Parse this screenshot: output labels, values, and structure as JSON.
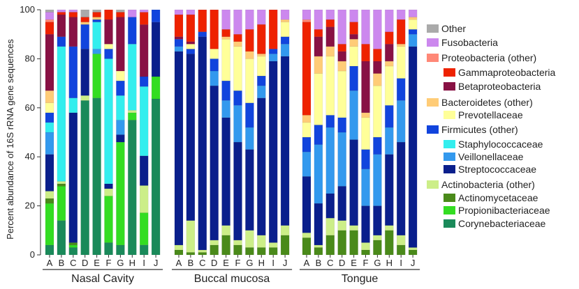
{
  "chart_data": {
    "type": "bar",
    "stacked": true,
    "ylabel": "Percent abundance of 16S rRNA gene sequences",
    "ylim": [
      0,
      100
    ],
    "yticks": [
      0,
      20,
      40,
      60,
      80,
      100
    ],
    "legend_position": "right",
    "taxa": [
      {
        "key": "cory",
        "name": "Corynebacteriaceae",
        "color": "#1a8a5a"
      },
      {
        "key": "prop",
        "name": "Propionibacteriaceae",
        "color": "#33dd22"
      },
      {
        "key": "actm",
        "name": "Actinomycetaceae",
        "color": "#4a8a1a"
      },
      {
        "key": "acto",
        "name": "Actinobacteria (other)",
        "color": "#ccee88"
      },
      {
        "key": "strep",
        "name": "Streptococcaceae",
        "color": "#0a1f8c"
      },
      {
        "key": "veil",
        "name": "Veillonellaceae",
        "color": "#3399ee"
      },
      {
        "key": "staph",
        "name": "Staphylococcaceae",
        "color": "#33eeee"
      },
      {
        "key": "firm",
        "name": "Firmicutes (other)",
        "color": "#1144dd"
      },
      {
        "key": "prev",
        "name": "Prevotellaceae",
        "color": "#ffff99"
      },
      {
        "key": "bact",
        "name": "Bacteroidetes (other)",
        "color": "#ffcc77"
      },
      {
        "key": "beta",
        "name": "Betaproteobacteria",
        "color": "#881144"
      },
      {
        "key": "gamma",
        "name": "Gammaproteobacteria",
        "color": "#ee2200"
      },
      {
        "key": "prot",
        "name": "Proteobacteria (other)",
        "color": "#ff8877"
      },
      {
        "key": "fuso",
        "name": "Fusobacteria",
        "color": "#cc88ee"
      },
      {
        "key": "other",
        "name": "Other",
        "color": "#aaaaaa"
      }
    ],
    "legend_order": [
      "other",
      "fuso",
      "prot",
      "gamma",
      "beta",
      "bact",
      "prev",
      "firm",
      "staph",
      "veil",
      "strep",
      "acto",
      "actm",
      "prop",
      "cory"
    ],
    "groups": [
      {
        "name": "Nasal Cavity",
        "categories": [
          "A",
          "B",
          "C",
          "D",
          "E",
          "F",
          "G",
          "H",
          "I",
          "J"
        ],
        "bars": [
          {
            "cory": 4,
            "prop": 17,
            "actm": 2,
            "acto": 3,
            "strep": 15,
            "veil": 9,
            "staph": 4,
            "firm": 4,
            "prev": 4,
            "bact": 5,
            "beta": 23,
            "gamma": 5,
            "prot": 1,
            "fuso": 3,
            "other": 1
          },
          {
            "cory": 14,
            "prop": 14,
            "actm": 1,
            "acto": 1,
            "staph": 55,
            "firm": 4,
            "beta": 9,
            "gamma": 1,
            "fuso": 1
          },
          {
            "cory": 3,
            "prop": 1,
            "actm": 1,
            "strep": 53,
            "staph": 6,
            "firm": 21,
            "beta": 12,
            "gamma": 2,
            "fuso": 1
          },
          {
            "cory": 63,
            "acto": 2,
            "strep": 19,
            "firm": 10,
            "bact": 1,
            "gamma": 2,
            "other": 3
          },
          {
            "cory": 64,
            "prop": 18,
            "veil": 2,
            "staph": 11,
            "firm": 1,
            "bact": 1,
            "gamma": 2,
            "other": 1
          },
          {
            "cory": 5,
            "prop": 19,
            "acto": 3,
            "strep": 2,
            "staph": 51,
            "firm": 4,
            "prev": 2,
            "beta": 10,
            "gamma": 4
          },
          {
            "cory": 4,
            "prop": 42,
            "strep": 3,
            "veil": 6,
            "staph": 10,
            "firm": 6,
            "prev": 4,
            "beta": 22,
            "gamma": 2,
            "other": 1
          },
          {
            "cory": 55,
            "prop": 3,
            "acto": 1,
            "staph": 27,
            "firm": 11,
            "fuso": 3
          },
          {
            "cory": 4,
            "prop": 13,
            "acto": 11,
            "strep": 12,
            "staph": 28,
            "firm": 4,
            "beta": 21,
            "gamma": 5,
            "fuso": 1
          },
          {
            "cory": 63,
            "prop": 9,
            "strep": 22,
            "firm": 5
          }
        ]
      },
      {
        "name": "Buccal mucosa",
        "categories": [
          "A",
          "B",
          "C",
          "D",
          "E",
          "F",
          "G",
          "H",
          "I",
          "J"
        ],
        "bars": [
          {
            "actm": 2,
            "acto": 2,
            "strep": 79,
            "veil": 2,
            "firm": 3,
            "beta": 1,
            "gamma": 9,
            "fuso": 2
          },
          {
            "actm": 1,
            "acto": 13,
            "strep": 68,
            "firm": 2,
            "prev": 2,
            "beta": 1,
            "gamma": 11,
            "fuso": 2
          },
          {
            "actm": 1,
            "acto": 1,
            "strep": 87,
            "firm": 2,
            "gamma": 9
          },
          {
            "actm": 4,
            "acto": 2,
            "strep": 63,
            "veil": 6,
            "firm": 5,
            "prev": 4,
            "gamma": 16
          },
          {
            "actm": 8,
            "acto": 4,
            "strep": 44,
            "veil": 7,
            "firm": 8,
            "prev": 17,
            "bact": 1,
            "gamma": 3,
            "fuso": 8
          },
          {
            "actm": 4,
            "acto": 2,
            "strep": 40,
            "veil": 15,
            "firm": 6,
            "prev": 18,
            "bact": 2,
            "gamma": 3,
            "fuso": 10
          },
          {
            "actm": 3,
            "acto": 7,
            "strep": 33,
            "veil": 9,
            "firm": 10,
            "prev": 18,
            "bact": 3,
            "gamma": 9,
            "fuso": 8
          },
          {
            "actm": 3,
            "acto": 5,
            "strep": 56,
            "veil": 5,
            "firm": 4,
            "prev": 8,
            "bact": 1,
            "gamma": 12,
            "fuso": 6
          },
          {
            "actm": 3,
            "acto": 2,
            "strep": 74,
            "veil": 3,
            "firm": 2,
            "gamma": 16
          },
          {
            "actm": 8,
            "acto": 4,
            "strep": 69,
            "veil": 5,
            "firm": 3,
            "prev": 6,
            "bact": 1,
            "fuso": 4
          }
        ]
      },
      {
        "name": "Tongue",
        "categories": [
          "A",
          "B",
          "C",
          "D",
          "E",
          "F",
          "G",
          "H",
          "I",
          "J"
        ],
        "bars": [
          {
            "actm": 7,
            "acto": 2,
            "strep": 23,
            "veil": 10,
            "firm": 6,
            "prev": 6,
            "bact": 3,
            "gamma": 38,
            "prot": 1,
            "fuso": 4
          },
          {
            "actm": 3,
            "acto": 1,
            "strep": 17,
            "veil": 24,
            "firm": 8,
            "prev": 21,
            "bact": 7,
            "beta": 8,
            "gamma": 3,
            "fuso": 8
          },
          {
            "actm": 8,
            "acto": 7,
            "strep": 10,
            "veil": 27,
            "firm": 5,
            "prev": 24,
            "bact": 4,
            "beta": 8,
            "gamma": 3,
            "fuso": 4
          },
          {
            "actm": 10,
            "acto": 4,
            "strep": 14,
            "veil": 22,
            "firm": 6,
            "prev": 19,
            "bact": 4,
            "beta": 4,
            "gamma": 3,
            "fuso": 14
          },
          {
            "actm": 10,
            "acto": 2,
            "strep": 35,
            "veil": 20,
            "firm": 10,
            "prev": 8,
            "bact": 3,
            "beta": 2,
            "gamma": 5,
            "fuso": 5
          },
          {
            "actm": 2,
            "acto": 3,
            "strep": 15,
            "veil": 15,
            "firm": 8,
            "prev": 13,
            "bact": 2,
            "beta": 21,
            "gamma": 7,
            "fuso": 14
          },
          {
            "actm": 6,
            "acto": 2,
            "strep": 12,
            "veil": 21,
            "firm": 7,
            "prev": 21,
            "bact": 5,
            "beta": 5,
            "gamma": 5,
            "fuso": 16
          },
          {
            "actm": 10,
            "acto": 2,
            "strep": 29,
            "veil": 11,
            "firm": 9,
            "prev": 16,
            "bact": 2,
            "beta": 7,
            "gamma": 5,
            "fuso": 9
          },
          {
            "actm": 4,
            "acto": 4,
            "strep": 38,
            "veil": 17,
            "firm": 9,
            "prev": 13,
            "bact": 1,
            "gamma": 10,
            "fuso": 4
          },
          {
            "actm": 2,
            "acto": 1,
            "strep": 82,
            "veil": 5,
            "firm": 2,
            "prev": 4,
            "bact": 1,
            "fuso": 3
          }
        ]
      }
    ]
  }
}
